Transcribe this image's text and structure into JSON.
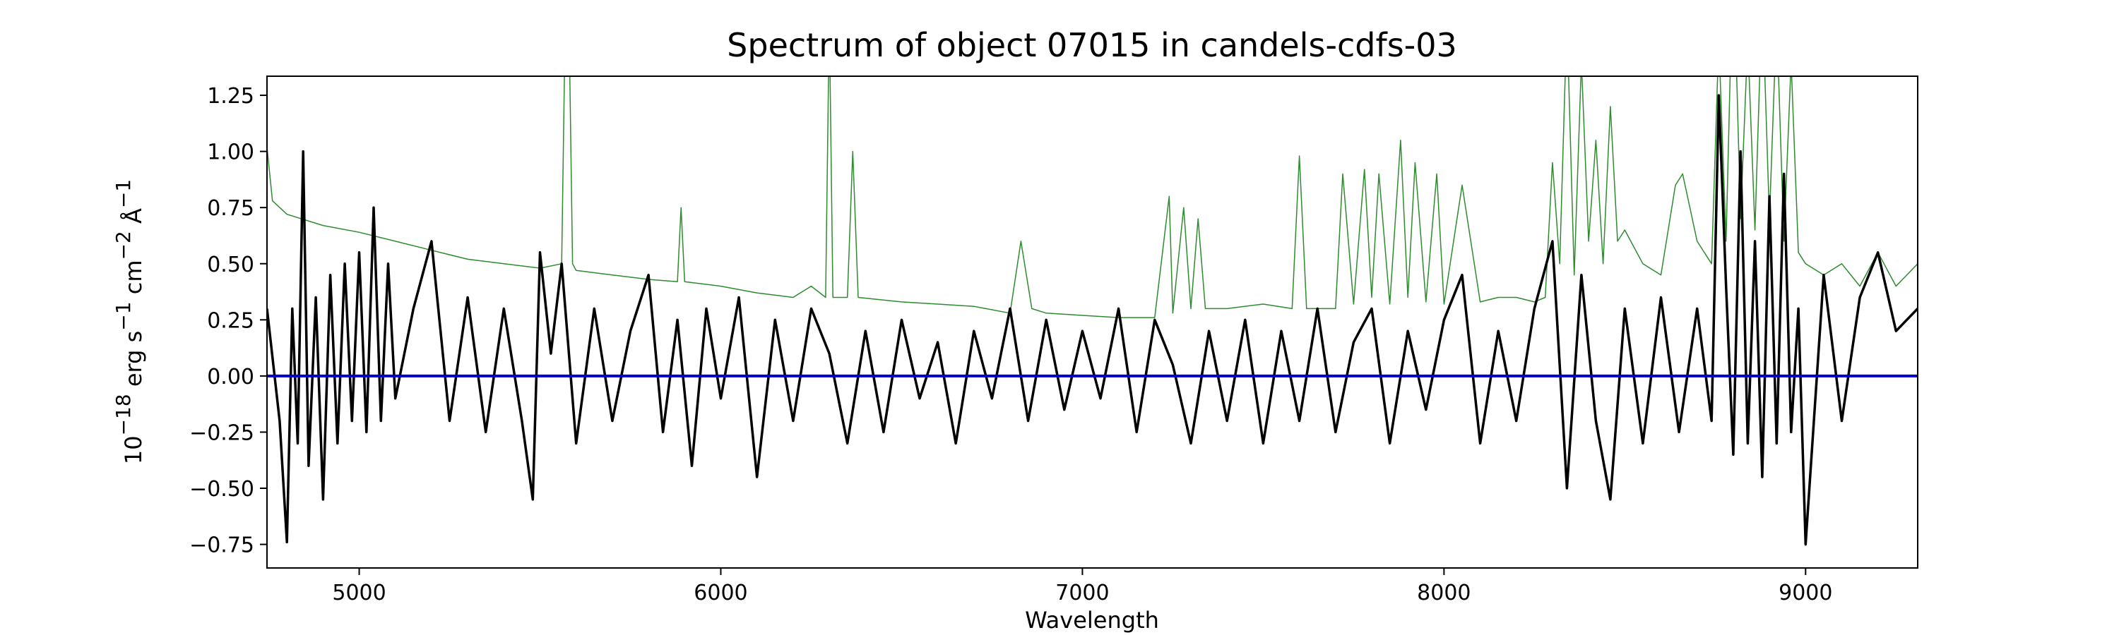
{
  "chart_data": {
    "type": "line",
    "title": "Spectrum of object 07015 in candels-cdfs-03",
    "xlabel": "Wavelength",
    "ylabel_parts": {
      "base": "10",
      "exp": "−18",
      "erg": "erg s",
      "s_exp": "−1",
      "cm": "cm",
      "cm_exp": "−2",
      "ang": "Å",
      "ang_exp": "−1"
    },
    "xlim": [
      4745,
      9310
    ],
    "ylim": [
      -0.855,
      1.335
    ],
    "xticks": [
      5000,
      6000,
      7000,
      8000,
      9000
    ],
    "xtick_labels": [
      "5000",
      "6000",
      "7000",
      "8000",
      "9000"
    ],
    "yticks": [
      -0.75,
      -0.5,
      -0.25,
      0.0,
      0.25,
      0.5,
      0.75,
      1.0,
      1.25
    ],
    "ytick_labels": [
      "−0.75",
      "−0.50",
      "−0.25",
      "0.00",
      "0.25",
      "0.50",
      "0.75",
      "1.00",
      "1.25"
    ],
    "grid": false,
    "legend": "none",
    "colors": {
      "flux": "#000000",
      "error": "#2e8b2e",
      "zero": "#0000cc"
    },
    "series": [
      {
        "role": "flux",
        "x": [
          4745,
          4780,
          4800,
          4815,
          4830,
          4845,
          4860,
          4880,
          4900,
          4920,
          4940,
          4960,
          4980,
          5000,
          5020,
          5040,
          5060,
          5080,
          5100,
          5150,
          5200,
          5250,
          5300,
          5350,
          5400,
          5450,
          5480,
          5500,
          5530,
          5560,
          5600,
          5650,
          5700,
          5750,
          5800,
          5840,
          5880,
          5920,
          5960,
          6000,
          6050,
          6100,
          6150,
          6200,
          6250,
          6300,
          6350,
          6400,
          6450,
          6500,
          6550,
          6600,
          6650,
          6700,
          6750,
          6800,
          6850,
          6900,
          6950,
          7000,
          7050,
          7100,
          7150,
          7200,
          7250,
          7300,
          7350,
          7400,
          7450,
          7500,
          7550,
          7600,
          7650,
          7700,
          7750,
          7800,
          7850,
          7900,
          7950,
          8000,
          8050,
          8100,
          8150,
          8200,
          8250,
          8300,
          8340,
          8380,
          8420,
          8460,
          8500,
          8550,
          8600,
          8650,
          8700,
          8740,
          8760,
          8780,
          8800,
          8820,
          8840,
          8860,
          8880,
          8900,
          8920,
          8940,
          8960,
          8980,
          9000,
          9050,
          9100,
          9150,
          9200,
          9250,
          9310
        ],
        "y": [
          0.3,
          -0.2,
          -0.74,
          0.3,
          -0.3,
          1.0,
          -0.4,
          0.35,
          -0.55,
          0.45,
          -0.3,
          0.5,
          -0.2,
          0.55,
          -0.25,
          0.75,
          -0.2,
          0.5,
          -0.1,
          0.3,
          0.6,
          -0.2,
          0.35,
          -0.25,
          0.3,
          -0.2,
          -0.55,
          0.55,
          0.1,
          0.5,
          -0.3,
          0.3,
          -0.2,
          0.2,
          0.45,
          -0.25,
          0.25,
          -0.4,
          0.3,
          -0.1,
          0.35,
          -0.45,
          0.25,
          -0.2,
          0.3,
          0.1,
          -0.3,
          0.2,
          -0.25,
          0.25,
          -0.1,
          0.15,
          -0.3,
          0.2,
          -0.1,
          0.3,
          -0.2,
          0.25,
          -0.15,
          0.2,
          -0.1,
          0.3,
          -0.25,
          0.25,
          0.05,
          -0.3,
          0.2,
          -0.2,
          0.25,
          -0.3,
          0.2,
          -0.2,
          0.3,
          -0.25,
          0.15,
          0.3,
          -0.3,
          0.2,
          -0.15,
          0.25,
          0.45,
          -0.3,
          0.2,
          -0.2,
          0.3,
          0.6,
          -0.5,
          0.45,
          -0.2,
          -0.55,
          0.3,
          -0.3,
          0.35,
          -0.25,
          0.3,
          -0.2,
          1.25,
          0.4,
          -0.35,
          1.0,
          -0.3,
          0.6,
          -0.45,
          0.8,
          -0.3,
          0.9,
          -0.25,
          0.3,
          -0.75,
          0.45,
          -0.2,
          0.35,
          0.55,
          0.2,
          0.3
        ]
      },
      {
        "role": "error",
        "x": [
          4745,
          4760,
          4800,
          4900,
          5000,
          5100,
          5200,
          5300,
          5400,
          5500,
          5560,
          5570,
          5580,
          5590,
          5600,
          5700,
          5800,
          5880,
          5890,
          5900,
          6000,
          6100,
          6200,
          6250,
          6290,
          6300,
          6310,
          6350,
          6365,
          6380,
          6500,
          6600,
          6700,
          6800,
          6830,
          6860,
          6900,
          7000,
          7100,
          7200,
          7240,
          7250,
          7280,
          7300,
          7320,
          7340,
          7400,
          7500,
          7580,
          7600,
          7620,
          7700,
          7720,
          7750,
          7780,
          7800,
          7820,
          7850,
          7880,
          7900,
          7920,
          7950,
          7980,
          8000,
          8050,
          8100,
          8150,
          8200,
          8250,
          8280,
          8300,
          8320,
          8340,
          8360,
          8380,
          8400,
          8420,
          8440,
          8460,
          8480,
          8500,
          8550,
          8600,
          8640,
          8660,
          8700,
          8740,
          8760,
          8780,
          8800,
          8820,
          8840,
          8860,
          8880,
          8900,
          8920,
          8940,
          8960,
          8980,
          9000,
          9050,
          9100,
          9150,
          9200,
          9250,
          9310
        ],
        "y": [
          1.02,
          0.78,
          0.72,
          0.67,
          0.64,
          0.6,
          0.56,
          0.52,
          0.5,
          0.48,
          0.5,
          1.6,
          1.6,
          0.5,
          0.47,
          0.45,
          0.43,
          0.42,
          0.75,
          0.42,
          0.4,
          0.37,
          0.35,
          0.4,
          0.35,
          1.6,
          0.35,
          0.35,
          1.0,
          0.35,
          0.33,
          0.32,
          0.31,
          0.28,
          0.6,
          0.3,
          0.28,
          0.27,
          0.26,
          0.26,
          0.8,
          0.28,
          0.75,
          0.3,
          0.7,
          0.3,
          0.3,
          0.32,
          0.3,
          0.98,
          0.3,
          0.3,
          0.9,
          0.32,
          0.92,
          0.35,
          0.9,
          0.32,
          1.05,
          0.35,
          0.95,
          0.33,
          0.9,
          0.32,
          0.85,
          0.33,
          0.35,
          0.35,
          0.33,
          0.35,
          0.95,
          0.5,
          1.6,
          0.45,
          1.4,
          0.6,
          1.05,
          0.5,
          1.2,
          0.6,
          0.65,
          0.5,
          0.45,
          0.85,
          0.9,
          0.6,
          0.5,
          1.5,
          0.6,
          1.9,
          0.7,
          1.5,
          0.65,
          1.7,
          0.7,
          1.6,
          0.6,
          1.4,
          0.55,
          0.5,
          0.45,
          0.5,
          0.4,
          0.55,
          0.4,
          0.5
        ]
      },
      {
        "role": "zero",
        "x": [
          4745,
          9310
        ],
        "y": [
          0,
          0
        ]
      }
    ]
  }
}
